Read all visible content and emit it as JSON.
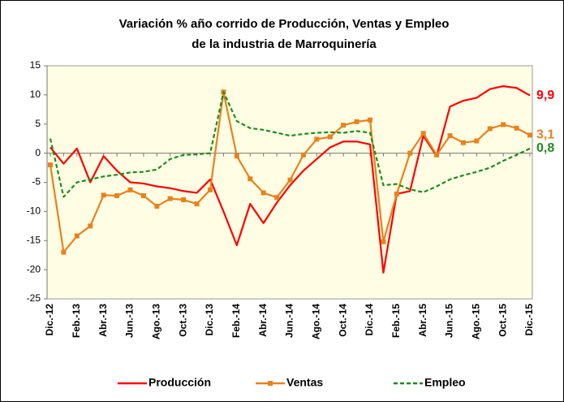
{
  "chart_data": {
    "type": "line",
    "title": "Variación % año corrido de Producción, Ventas y Empleo",
    "subtitle": "de la industria de Marroquinería",
    "categories": [
      "Dic.-12",
      null,
      "Feb.-13",
      null,
      "Abr.-13",
      null,
      "Jun.-13",
      null,
      "Ago.-13",
      null,
      "Oct.-13",
      null,
      "Dic.-13",
      null,
      "Feb.-14",
      null,
      "Abr.-14",
      null,
      "Jun.-14",
      null,
      "Ago.-14",
      null,
      "Oct.-14",
      null,
      "Dic.-14",
      null,
      "Feb.-15",
      null,
      "Abr.-15",
      null,
      "Jun.-15",
      null,
      "Ago.-15",
      null,
      "Oct.-15",
      null,
      "Dic.-15"
    ],
    "series": [
      {
        "name": "Producción",
        "color": "#ff0000",
        "dash": false,
        "markers": false,
        "end_label": "9,9",
        "values": [
          1,
          -1.8,
          0.8,
          -5,
          -0.5,
          -3,
          -5,
          -5.2,
          -5.7,
          -6,
          -6.5,
          -6.8,
          -4.5,
          -10,
          -15.8,
          -8.7,
          -12,
          -8.5,
          -5.5,
          -3,
          -1,
          1,
          2,
          2,
          1.5,
          -20.5,
          -7,
          -6.5,
          3,
          -0.5,
          8,
          9,
          9.5,
          11,
          11.5,
          11.2,
          9.9
        ]
      },
      {
        "name": "Ventas",
        "color": "#e8821e",
        "dash": false,
        "markers": true,
        "end_label": "3,1",
        "values": [
          -2,
          -17,
          -14.2,
          -12.5,
          -7.2,
          -7.3,
          -6.3,
          -7.3,
          -9.1,
          -7.8,
          -8,
          -8.7,
          -6.3,
          10.5,
          -0.5,
          -4.4,
          -6.8,
          -7.6,
          -4.6,
          -0.3,
          2.4,
          2.8,
          4.8,
          5.4,
          5.7,
          -15.2,
          -7,
          0,
          3.4,
          -0.3,
          3,
          1.8,
          2.1,
          4.2,
          4.9,
          4.3,
          3.1
        ]
      },
      {
        "name": "Empleo",
        "color": "#1e8c1e",
        "dash": true,
        "markers": false,
        "end_label": "0,8",
        "values": [
          2.5,
          -7.5,
          -5,
          -4.5,
          -4,
          -3.7,
          -3.3,
          -3.2,
          -2.8,
          -1,
          -0.3,
          -0.2,
          0,
          10.5,
          5.5,
          4.3,
          4,
          3.5,
          3,
          3.3,
          3.5,
          3.6,
          3.5,
          3.8,
          3.5,
          -5.5,
          -5.3,
          -6.2,
          -6.7,
          -5.7,
          -4.5,
          -3.8,
          -3.2,
          -2.5,
          -1.3,
          -0.3,
          0.8
        ]
      }
    ],
    "ylim": [
      -25,
      15
    ],
    "yticks": [
      -25,
      -20,
      -15,
      -10,
      -5,
      0,
      5,
      10,
      15
    ],
    "grid": false,
    "legend": "bottom"
  }
}
